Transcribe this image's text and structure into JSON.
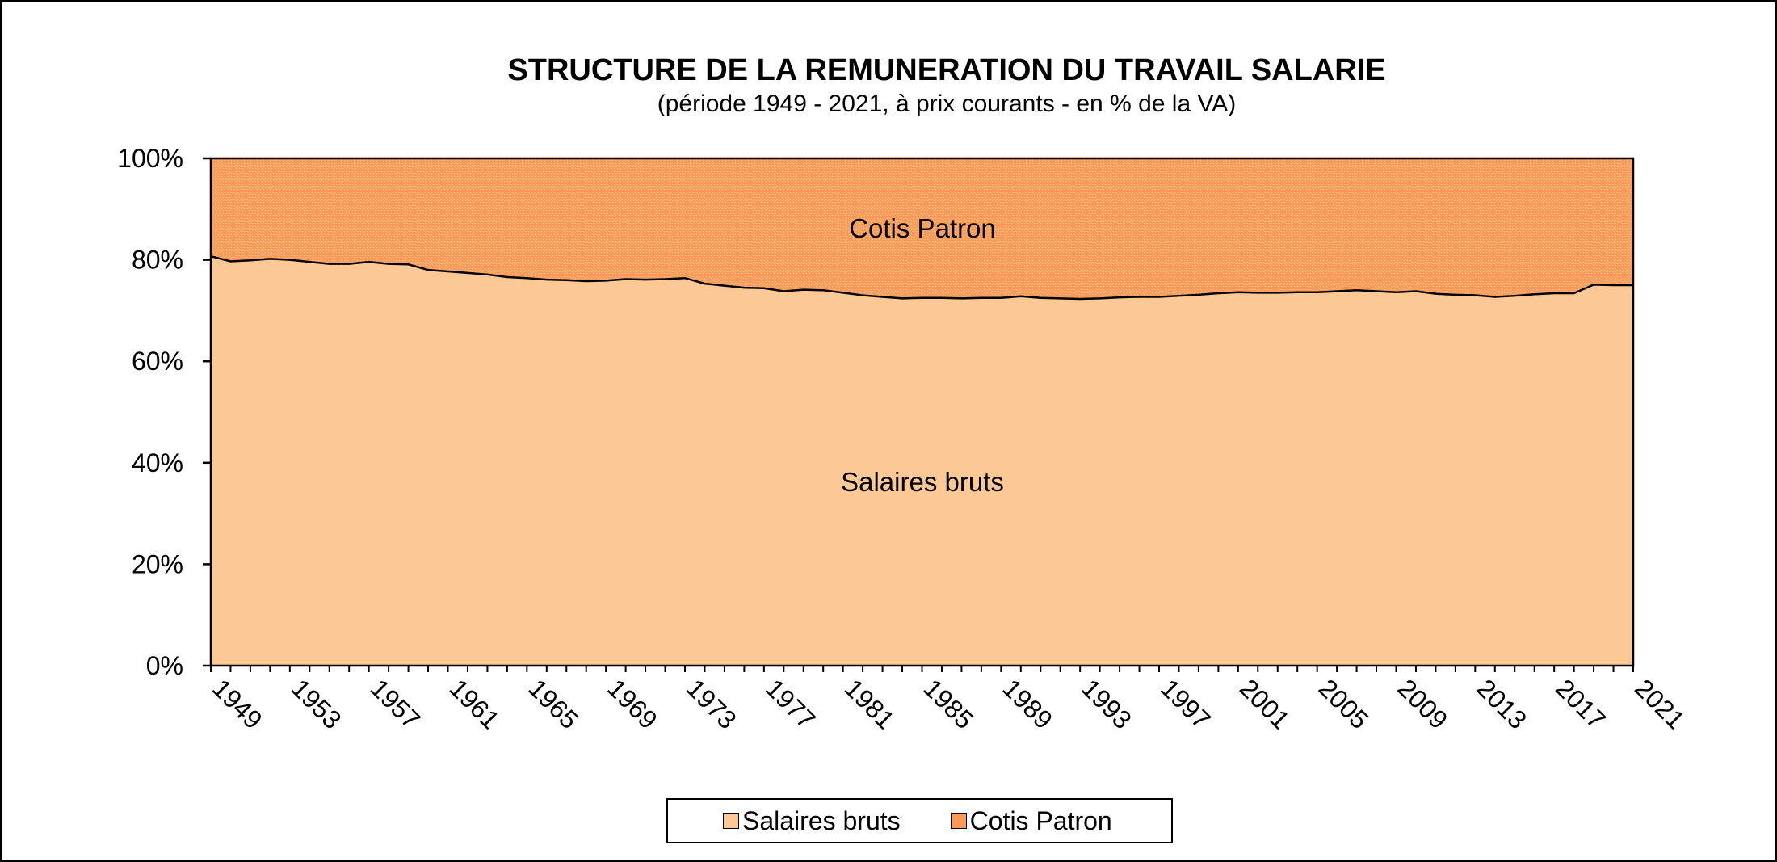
{
  "chart_data": {
    "type": "area",
    "stacked": true,
    "percent": true,
    "title": "STRUCTURE DE LA REMUNERATION DU TRAVAIL SALARIE",
    "subtitle": "(période 1949 - 2021, à prix courants - en % de la VA)",
    "ylim": [
      0,
      100
    ],
    "y_ticks": [
      "0%",
      "20%",
      "40%",
      "60%",
      "80%",
      "100%"
    ],
    "x_tick_labels": [
      "1949",
      "1953",
      "1957",
      "1961",
      "1965",
      "1969",
      "1973",
      "1977",
      "1981",
      "1985",
      "1989",
      "1993",
      "1997",
      "2001",
      "2005",
      "2009",
      "2013",
      "2017",
      "2021"
    ],
    "x_start": 1949,
    "x_end": 2021,
    "grid": false,
    "legend_position": "bottom",
    "series": [
      {
        "name": "Salaires bruts",
        "color": "#fcc896",
        "x": [
          1949,
          1950,
          1951,
          1952,
          1953,
          1954,
          1955,
          1956,
          1957,
          1958,
          1959,
          1960,
          1961,
          1962,
          1963,
          1964,
          1965,
          1966,
          1967,
          1968,
          1969,
          1970,
          1971,
          1972,
          1973,
          1974,
          1975,
          1976,
          1977,
          1978,
          1979,
          1980,
          1981,
          1982,
          1983,
          1984,
          1985,
          1986,
          1987,
          1988,
          1989,
          1990,
          1991,
          1992,
          1993,
          1994,
          1995,
          1996,
          1997,
          1998,
          1999,
          2000,
          2001,
          2002,
          2003,
          2004,
          2005,
          2006,
          2007,
          2008,
          2009,
          2010,
          2011,
          2012,
          2013,
          2014,
          2015,
          2016,
          2017,
          2018,
          2019,
          2020,
          2021
        ],
        "values": [
          80.7,
          79.7,
          79.9,
          80.2,
          80.0,
          79.6,
          79.2,
          79.2,
          79.6,
          79.2,
          79.1,
          78.0,
          77.7,
          77.4,
          77.1,
          76.6,
          76.4,
          76.1,
          76.0,
          75.8,
          75.9,
          76.2,
          76.1,
          76.2,
          76.4,
          75.3,
          74.9,
          74.5,
          74.4,
          73.8,
          74.1,
          74.0,
          73.5,
          73.0,
          72.7,
          72.4,
          72.5,
          72.5,
          72.4,
          72.5,
          72.5,
          72.8,
          72.5,
          72.4,
          72.3,
          72.4,
          72.6,
          72.7,
          72.7,
          72.9,
          73.1,
          73.4,
          73.6,
          73.5,
          73.5,
          73.6,
          73.6,
          73.8,
          74.0,
          73.8,
          73.6,
          73.8,
          73.3,
          73.1,
          73.0,
          72.7,
          72.9,
          73.2,
          73.4,
          73.4,
          75.1,
          75.0,
          75.0
        ]
      },
      {
        "name": "Cotis Patron",
        "color": "#fa9a56",
        "x": [
          1949,
          1950,
          1951,
          1952,
          1953,
          1954,
          1955,
          1956,
          1957,
          1958,
          1959,
          1960,
          1961,
          1962,
          1963,
          1964,
          1965,
          1966,
          1967,
          1968,
          1969,
          1970,
          1971,
          1972,
          1973,
          1974,
          1975,
          1976,
          1977,
          1978,
          1979,
          1980,
          1981,
          1982,
          1983,
          1984,
          1985,
          1986,
          1987,
          1988,
          1989,
          1990,
          1991,
          1992,
          1993,
          1994,
          1995,
          1996,
          1997,
          1998,
          1999,
          2000,
          2001,
          2002,
          2003,
          2004,
          2005,
          2006,
          2007,
          2008,
          2009,
          2010,
          2011,
          2012,
          2013,
          2014,
          2015,
          2016,
          2017,
          2018,
          2019,
          2020,
          2021
        ],
        "values": [
          19.3,
          20.3,
          20.1,
          19.8,
          20.0,
          20.4,
          20.8,
          20.8,
          20.4,
          20.8,
          20.9,
          22.0,
          22.3,
          22.6,
          22.9,
          23.4,
          23.6,
          23.9,
          24.0,
          24.2,
          24.1,
          23.8,
          23.9,
          23.8,
          23.6,
          24.7,
          25.1,
          25.5,
          25.6,
          26.2,
          25.9,
          26.0,
          26.5,
          27.0,
          27.3,
          27.6,
          27.5,
          27.5,
          27.6,
          27.5,
          27.5,
          27.2,
          27.5,
          27.6,
          27.7,
          27.6,
          27.4,
          27.3,
          27.3,
          27.1,
          26.9,
          26.6,
          26.4,
          26.5,
          26.5,
          26.4,
          26.4,
          26.2,
          26.0,
          26.2,
          26.4,
          26.2,
          26.7,
          26.9,
          27.0,
          27.3,
          27.1,
          26.8,
          26.6,
          26.6,
          24.9,
          25.0,
          25.0
        ]
      }
    ],
    "area_labels": [
      "Cotis Patron",
      "Salaires bruts"
    ]
  }
}
